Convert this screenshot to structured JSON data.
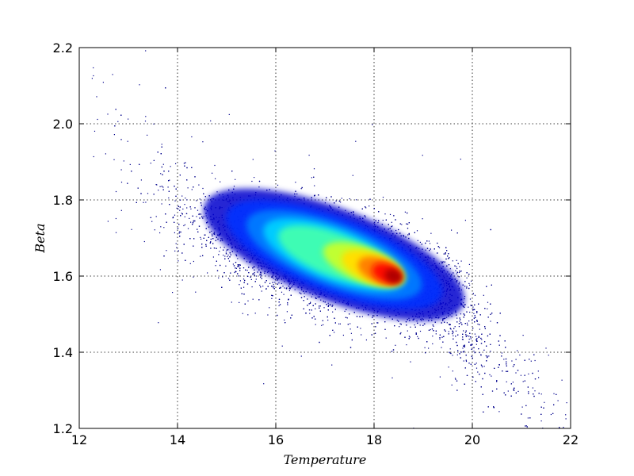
{
  "chart_data": {
    "type": "scatter",
    "title": "",
    "xlabel": "Temperature",
    "ylabel": "Beta",
    "xlim": [
      12,
      22
    ],
    "ylim": [
      1.2,
      2.2
    ],
    "x_ticks": [
      "12",
      "14",
      "16",
      "18",
      "20",
      "22"
    ],
    "y_ticks": [
      "1.2",
      "1.4",
      "1.6",
      "1.8",
      "2.0",
      "2.2"
    ],
    "grid": true,
    "legend": "none",
    "colormap": "jet",
    "point_color": "#00008b",
    "density_peak": {
      "x": 17.8,
      "y": 1.63
    },
    "description_series": [
      {
        "name": "",
        "trend": {
          "x": [
            13.0,
            14.0,
            15.0,
            16.0,
            17.0,
            17.8,
            18.5,
            19.5,
            20.5,
            21.5
          ],
          "y": [
            1.92,
            1.77,
            1.71,
            1.665,
            1.64,
            1.63,
            1.6,
            1.54,
            1.38,
            1.26
          ]
        }
      }
    ]
  }
}
